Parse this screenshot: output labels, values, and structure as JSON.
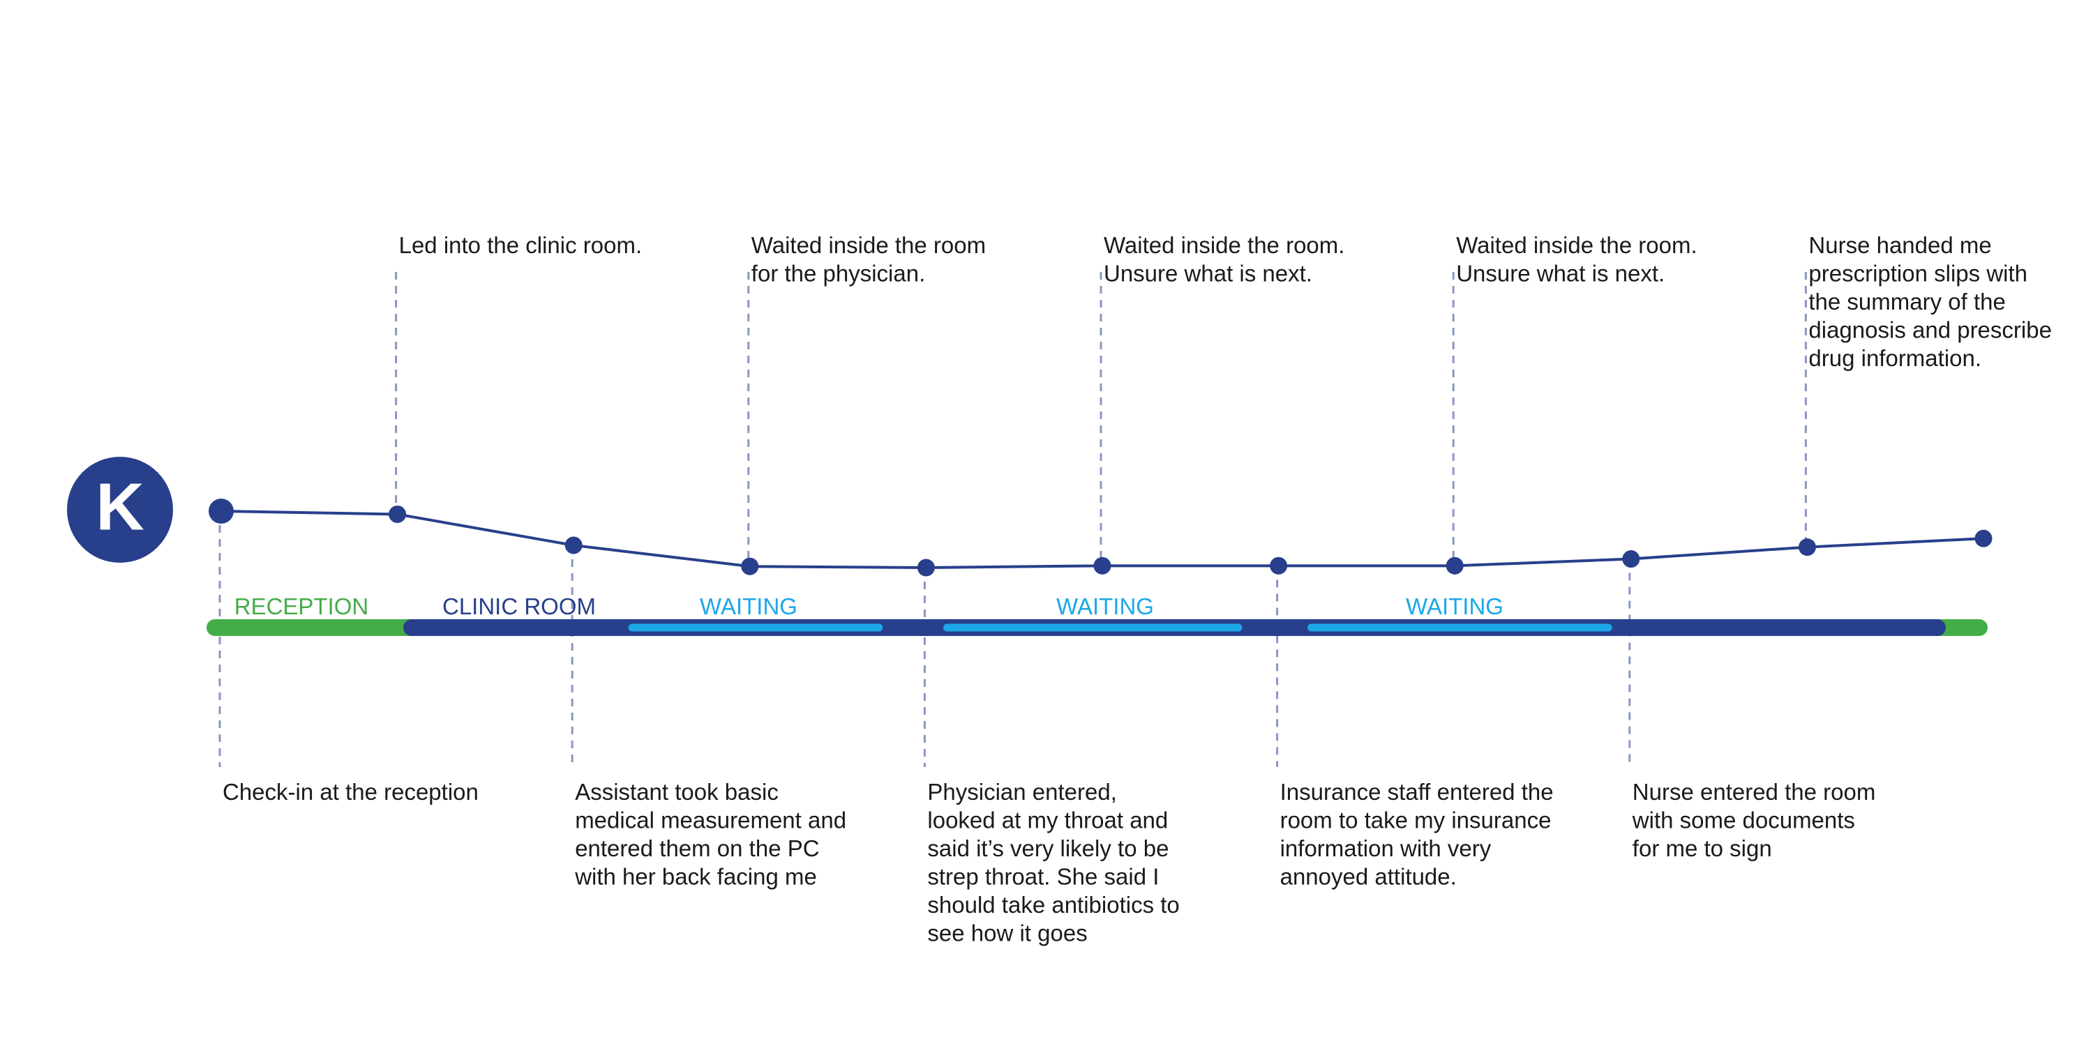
{
  "persona": {
    "initial": "K",
    "color": "#283f8c"
  },
  "colors": {
    "line": "#283f8c",
    "point": "#283f8c",
    "connector": "#8a96c2",
    "reception": "#45ad48",
    "clinic_room": "#283f8c",
    "waiting": "#1ba7e8",
    "text": "#1a1a1a"
  },
  "chart_data": {
    "type": "line",
    "values": [
      0.0,
      0.05,
      0.55,
      0.89,
      0.91,
      0.88,
      0.88,
      0.88,
      0.77,
      0.58,
      0.44
    ]
  },
  "steps": [
    {
      "position": "below",
      "lines": [
        "Check-in at the reception"
      ]
    },
    {
      "position": "above",
      "lines": [
        "Led into the clinic room."
      ]
    },
    {
      "position": "below",
      "lines": [
        "Assistant took basic",
        "medical measurement and",
        "entered them on the PC",
        "with her back facing me"
      ]
    },
    {
      "position": "above",
      "lines": [
        "Waited inside the room",
        "for the physician."
      ]
    },
    {
      "position": "below",
      "lines": [
        "Physician entered,",
        "looked at my throat and",
        "said it’s very likely to be",
        "strep throat. She said I",
        "should take antibiotics to",
        "see how it goes"
      ]
    },
    {
      "position": "above",
      "lines": [
        "Waited inside the room.",
        "Unsure what is next."
      ]
    },
    {
      "position": "below",
      "lines": [
        "Insurance staff entered the",
        "room to take my insurance",
        "information with very",
        "annoyed attitude."
      ]
    },
    {
      "position": "above",
      "lines": [
        "Waited inside the room.",
        "Unsure what is next."
      ]
    },
    {
      "position": "below",
      "lines": [
        "Nurse entered the room",
        "with some documents",
        "for me to sign"
      ]
    },
    {
      "position": "above",
      "lines": [
        "Nurse handed me",
        "prescription slips with",
        "the summary of the",
        "diagnosis and prescribe",
        "drug information."
      ]
    },
    {
      "position": "none",
      "lines": []
    }
  ],
  "phases": [
    {
      "kind": "reception",
      "label": "RECEPTION"
    },
    {
      "kind": "clinic_room",
      "label": "CLINIC ROOM"
    },
    {
      "kind": "waiting",
      "label": "WAITING"
    },
    {
      "kind": "waiting",
      "label": "WAITING"
    },
    {
      "kind": "waiting",
      "label": "WAITING"
    }
  ]
}
